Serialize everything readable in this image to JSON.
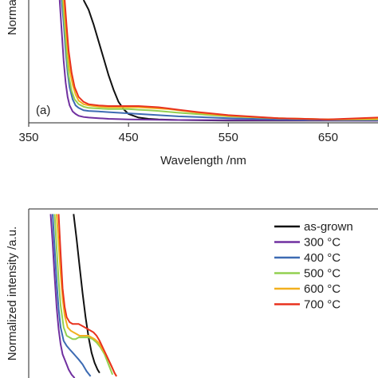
{
  "chart_data": [
    {
      "type": "line",
      "panel_label": "(a)",
      "xlabel": "Wavelength /nm",
      "ylabel": "Normalized intensity /a.u.",
      "xlim": [
        350,
        700
      ],
      "ylim": [
        0,
        1
      ],
      "x_ticks": [
        350,
        450,
        550,
        650
      ],
      "grid": false,
      "series": [
        {
          "name": "as-grown",
          "color": "#111111",
          "x": [
            405,
            410,
            415,
            420,
            425,
            430,
            435,
            440,
            445,
            450,
            460,
            470,
            480,
            500,
            550,
            600,
            650,
            700
          ],
          "y": [
            1.0,
            0.92,
            0.8,
            0.66,
            0.52,
            0.38,
            0.26,
            0.16,
            0.1,
            0.06,
            0.03,
            0.02,
            0.015,
            0.01,
            0.005,
            0.005,
            0.005,
            0.005
          ]
        },
        {
          "name": "300 °C",
          "color": "#7030a0",
          "x": [
            381,
            383,
            385,
            387,
            389,
            391,
            394,
            397,
            400,
            405,
            410,
            420,
            430,
            450,
            500,
            600,
            700
          ],
          "y": [
            1.0,
            0.75,
            0.5,
            0.32,
            0.2,
            0.13,
            0.08,
            0.06,
            0.045,
            0.035,
            0.03,
            0.025,
            0.02,
            0.015,
            0.01,
            0.008,
            0.005
          ]
        },
        {
          "name": "400 °C",
          "color": "#3d6bb3",
          "x": [
            383,
            385,
            387,
            389,
            391,
            394,
            397,
            400,
            405,
            410,
            420,
            430,
            440,
            450,
            460,
            480,
            500,
            550,
            600,
            650,
            700
          ],
          "y": [
            1.0,
            0.82,
            0.58,
            0.4,
            0.28,
            0.18,
            0.13,
            0.11,
            0.09,
            0.085,
            0.08,
            0.075,
            0.07,
            0.065,
            0.06,
            0.05,
            0.04,
            0.025,
            0.015,
            0.01,
            0.01
          ]
        },
        {
          "name": "500 °C",
          "color": "#92d050",
          "x": [
            384,
            386,
            388,
            390,
            393,
            396,
            400,
            405,
            410,
            420,
            430,
            440,
            450,
            460,
            470,
            480,
            500,
            550,
            600,
            650,
            700
          ],
          "y": [
            1.0,
            0.78,
            0.55,
            0.38,
            0.25,
            0.18,
            0.14,
            0.12,
            0.11,
            0.105,
            0.1,
            0.1,
            0.1,
            0.095,
            0.09,
            0.085,
            0.07,
            0.04,
            0.025,
            0.015,
            0.015
          ]
        },
        {
          "name": "600 °C",
          "color": "#f2b01e",
          "x": [
            385,
            387,
            389,
            391,
            394,
            397,
            400,
            405,
            410,
            420,
            430,
            440,
            450,
            460,
            470,
            480,
            490,
            500,
            520,
            550,
            600,
            650,
            700
          ],
          "y": [
            1.0,
            0.8,
            0.6,
            0.43,
            0.3,
            0.22,
            0.17,
            0.14,
            0.13,
            0.12,
            0.115,
            0.115,
            0.115,
            0.115,
            0.11,
            0.105,
            0.1,
            0.09,
            0.07,
            0.045,
            0.025,
            0.015,
            0.02
          ]
        },
        {
          "name": "700 °C",
          "color": "#e8321e",
          "x": [
            386,
            388,
            390,
            393,
            396,
            400,
            405,
            410,
            420,
            430,
            440,
            450,
            460,
            470,
            480,
            490,
            500,
            520,
            550,
            600,
            650,
            700
          ],
          "y": [
            1.0,
            0.78,
            0.58,
            0.4,
            0.28,
            0.2,
            0.16,
            0.14,
            0.13,
            0.125,
            0.125,
            0.125,
            0.125,
            0.12,
            0.115,
            0.105,
            0.095,
            0.075,
            0.05,
            0.025,
            0.015,
            0.03
          ]
        }
      ]
    },
    {
      "type": "line",
      "ylabel": "Normalized intensity /a.u.",
      "xlim": [
        350,
        700
      ],
      "ylim": [
        0,
        1
      ],
      "grid": false,
      "legend_position": "top-right",
      "series": [
        {
          "name": "as-grown",
          "color": "#111111",
          "x": [
            395,
            398,
            401,
            404,
            407,
            410,
            413,
            416,
            419,
            421
          ],
          "y": [
            0.97,
            0.82,
            0.66,
            0.5,
            0.36,
            0.24,
            0.15,
            0.09,
            0.05,
            0.03
          ]
        },
        {
          "name": "300 °C",
          "color": "#7030a0",
          "x": [
            372,
            374,
            376,
            378,
            380,
            382,
            384,
            386,
            388,
            390,
            393,
            396
          ],
          "y": [
            0.97,
            0.8,
            0.6,
            0.42,
            0.29,
            0.2,
            0.14,
            0.11,
            0.08,
            0.05,
            0.02,
            0.0
          ]
        },
        {
          "name": "400 °C",
          "color": "#3d6bb3",
          "x": [
            374,
            376,
            378,
            380,
            382,
            385,
            388,
            391,
            394,
            397,
            400,
            404,
            408,
            412
          ],
          "y": [
            0.97,
            0.77,
            0.57,
            0.41,
            0.3,
            0.22,
            0.19,
            0.17,
            0.15,
            0.13,
            0.11,
            0.08,
            0.04,
            0.01
          ]
        },
        {
          "name": "500 °C",
          "color": "#92d050",
          "x": [
            376,
            378,
            380,
            382,
            385,
            388,
            391,
            394,
            397,
            400,
            403,
            406,
            410,
            414,
            418,
            422,
            426,
            430,
            434
          ],
          "y": [
            0.97,
            0.77,
            0.58,
            0.43,
            0.3,
            0.25,
            0.24,
            0.23,
            0.23,
            0.24,
            0.24,
            0.24,
            0.24,
            0.23,
            0.21,
            0.18,
            0.14,
            0.08,
            0.02
          ]
        },
        {
          "name": "600 °C",
          "color": "#f2b01e",
          "x": [
            378,
            380,
            382,
            384,
            386,
            389,
            392,
            395,
            398,
            401,
            404,
            407,
            410,
            413,
            416,
            420,
            424,
            428,
            432,
            436,
            438
          ],
          "y": [
            0.97,
            0.8,
            0.62,
            0.47,
            0.37,
            0.3,
            0.28,
            0.27,
            0.26,
            0.25,
            0.25,
            0.25,
            0.25,
            0.24,
            0.23,
            0.21,
            0.17,
            0.13,
            0.08,
            0.03,
            0.01
          ]
        },
        {
          "name": "700 °C",
          "color": "#e8321e",
          "x": [
            380,
            382,
            384,
            386,
            388,
            391,
            394,
            397,
            400,
            403,
            406,
            409,
            412,
            415,
            418,
            421,
            425,
            429,
            433,
            436,
            438
          ],
          "y": [
            0.97,
            0.74,
            0.53,
            0.42,
            0.36,
            0.33,
            0.32,
            0.32,
            0.32,
            0.31,
            0.3,
            0.29,
            0.28,
            0.27,
            0.25,
            0.22,
            0.17,
            0.12,
            0.07,
            0.03,
            0.01
          ]
        }
      ]
    }
  ]
}
